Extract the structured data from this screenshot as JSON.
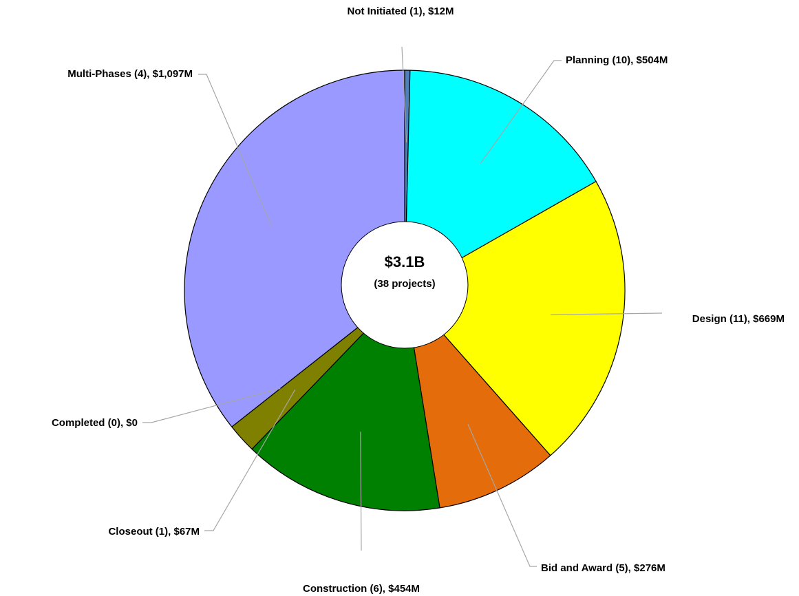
{
  "chart_data": {
    "type": "donut",
    "labels": [
      "Not Initiated (1), $12M",
      "Planning (10), $504M",
      "Design (11), $669M",
      "Bid and Award (5), $276M",
      "Construction (6), $454M",
      "Closeout (1), $67M",
      "Completed (0), $0",
      "Multi-Phases (4), $1,097M"
    ],
    "values": [
      12,
      504,
      669,
      276,
      454,
      67,
      0,
      1097
    ],
    "colors": [
      "#4f81bd",
      "#00ffff",
      "#ffff00",
      "#e46c0a",
      "#008000",
      "#808000",
      "#c0c0c0",
      "#9999ff"
    ],
    "center_label": "$3.1B",
    "center_sublabel": "(38 projects)"
  }
}
